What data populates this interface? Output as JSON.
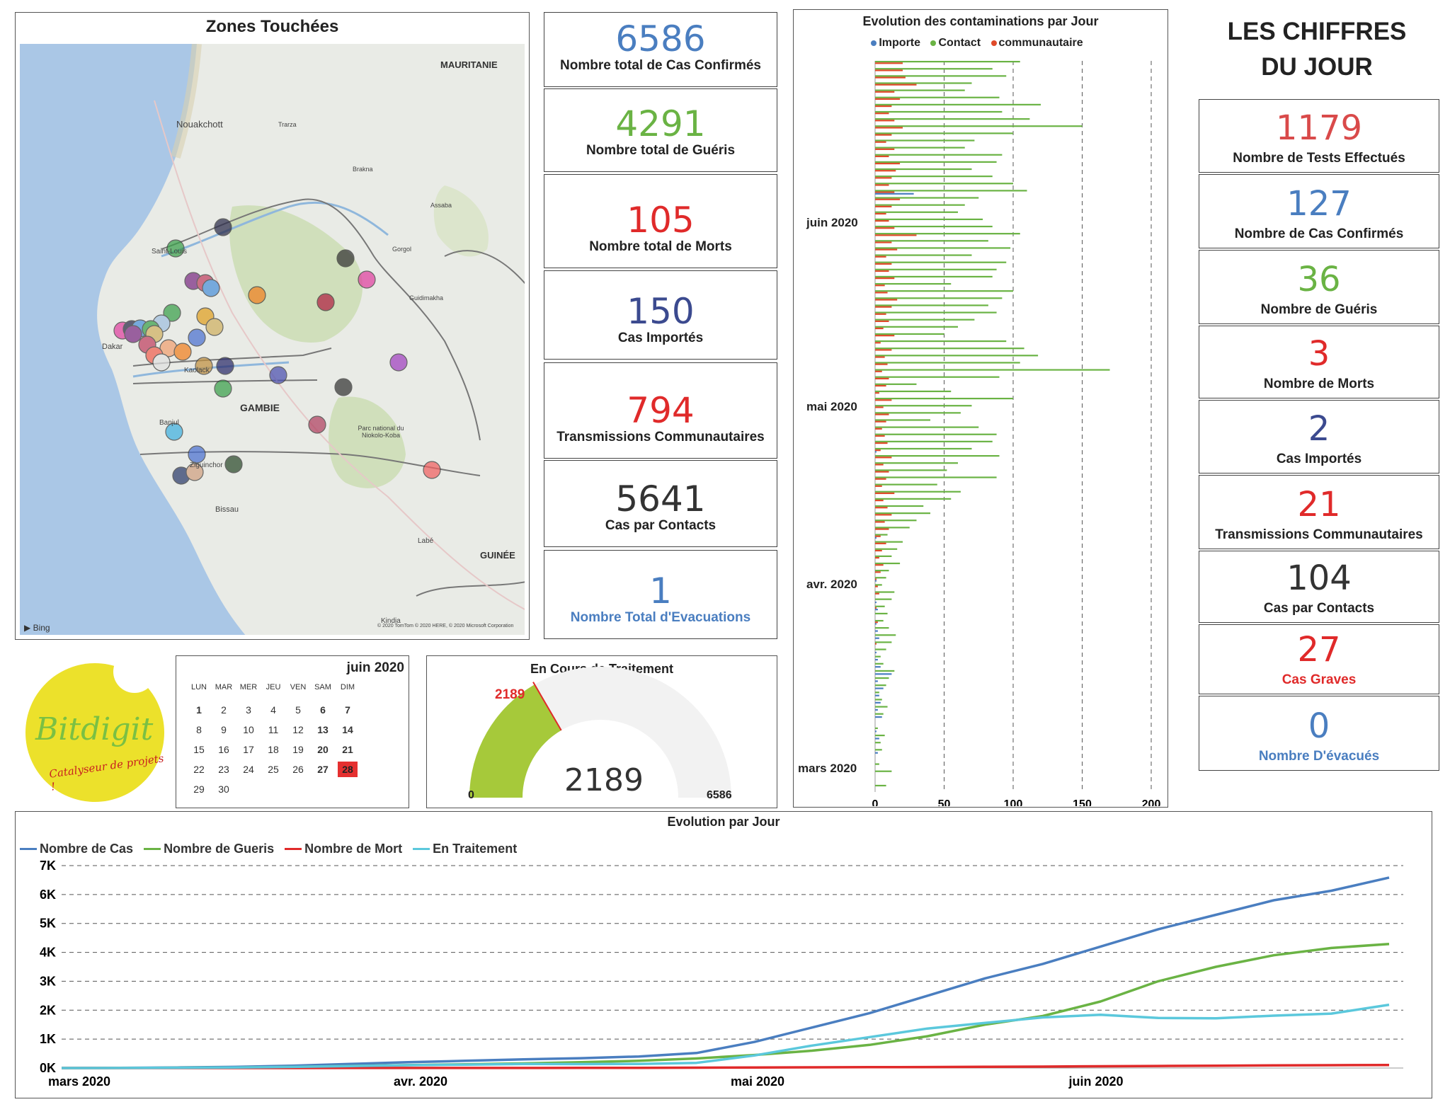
{
  "map": {
    "title": "Zones Touchées",
    "labels": [
      "MAURITANIE",
      "Nouakchott",
      "Trarza",
      "Brakna",
      "Assaba",
      "Saint-Louis",
      "Gorgol",
      "Guidimakha",
      "Dakar",
      "Kaolack",
      "GAMBIE",
      "Banjul",
      "Parc national du Niokolo-Koba",
      "Ziguinchor",
      "Bissau",
      "Labé",
      "GUINÉE",
      "Kindia"
    ],
    "bing": "Bing",
    "attribution": "© 2020 TomTom © 2020 HERE, © 2020 Microsoft Corporation"
  },
  "totals": [
    {
      "value": "6586",
      "label": "Nombre total de Cas Confirmés",
      "color": "#4a7ec0"
    },
    {
      "value": "4291",
      "label": "Nombre total de Guéris",
      "color": "#6ab344"
    },
    {
      "value": "105",
      "label": "Nombre total de Morts",
      "color": "#e02a2a"
    },
    {
      "value": "150",
      "label": "Cas Importés",
      "color": "#3b4a8f"
    },
    {
      "value": "794",
      "label": "Transmissions Communautaires",
      "color": "#e02a2a"
    },
    {
      "value": "5641",
      "label": "Cas par Contacts",
      "color": "#333333"
    },
    {
      "value": "1",
      "label": "Nombre Total d'Evacuations",
      "color": "#4a7ec0",
      "label_color": "#4a7ec0"
    }
  ],
  "daily_header": {
    "line1": "LES CHIFFRES",
    "line2": "DU JOUR"
  },
  "daily": [
    {
      "value": "1179",
      "label": "Nombre de Tests Effectués",
      "color": "#d94a4a"
    },
    {
      "value": "127",
      "label": "Nombre de Cas Confirmés",
      "color": "#4a7ec0"
    },
    {
      "value": "36",
      "label": "Nombre de Guéris",
      "color": "#6ab344"
    },
    {
      "value": "3",
      "label": "Nombre de Morts",
      "color": "#e02a2a"
    },
    {
      "value": "2",
      "label": "Cas Importés",
      "color": "#3b4a8f"
    },
    {
      "value": "21",
      "label": "Transmissions Communautaires",
      "color": "#e02a2a"
    },
    {
      "value": "104",
      "label": "Cas par Contacts",
      "color": "#333333"
    },
    {
      "value": "27",
      "label": "Cas Graves",
      "color": "#e02a2a",
      "label_color": "#e02a2a"
    },
    {
      "value": "0",
      "label": "Nombre D'évacués",
      "color": "#4a7ec0",
      "label_color": "#4a7ec0"
    }
  ],
  "calendar": {
    "month": "juin 2020",
    "dow": [
      "LUN",
      "MAR",
      "MER",
      "JEU",
      "VEN",
      "SAM",
      "DIM"
    ],
    "days": [
      "1",
      "2",
      "3",
      "4",
      "5",
      "6",
      "7",
      "8",
      "9",
      "10",
      "11",
      "12",
      "13",
      "14",
      "15",
      "16",
      "17",
      "18",
      "19",
      "20",
      "21",
      "22",
      "23",
      "24",
      "25",
      "26",
      "27",
      "28",
      "29",
      "30"
    ],
    "highlight": "28"
  },
  "logo": {
    "brand_a": "Bit",
    "brand_b": "digit",
    "tagline": "Catalyseur de projets !"
  },
  "gauge": {
    "title": "En Cours de Traitement",
    "value": 2189,
    "value_label": "2189",
    "min_label": "0",
    "max_label": "6586",
    "max": 6586
  },
  "bar_chart": {
    "title": "Evolution des contaminations par Jour",
    "legend": [
      {
        "name": "Importe",
        "color": "#4a7ec0"
      },
      {
        "name": "Contact",
        "color": "#6ab344"
      },
      {
        "name": "communautaire",
        "color": "#e04a2a"
      }
    ],
    "y_labels": [
      "juin 2020",
      "mai 2020",
      "avr. 2020",
      "mars 2020"
    ],
    "x_ticks": [
      "0",
      "50",
      "100",
      "150",
      "200"
    ]
  },
  "chart_data": {
    "type": "bar",
    "orientation": "horizontal",
    "title": "Evolution des contaminations par Jour",
    "xlim": [
      0,
      200
    ],
    "series": [
      {
        "name": "Contact",
        "color": "#6ab344",
        "values": [
          8,
          0,
          12,
          3,
          0,
          5,
          4,
          7,
          2,
          0,
          6,
          9,
          5,
          3,
          8,
          10,
          14,
          6,
          4,
          8,
          12,
          15,
          10,
          6,
          9,
          7,
          12,
          14,
          5,
          8,
          10,
          18,
          12,
          16,
          20,
          9,
          25,
          30,
          40,
          35,
          55,
          62,
          45,
          88,
          52,
          60,
          90,
          70,
          85,
          88,
          75,
          40,
          62,
          70,
          100,
          55,
          30,
          90,
          170,
          105,
          118,
          108,
          95,
          50,
          60,
          72,
          88,
          82,
          92,
          100,
          55,
          85,
          88,
          95,
          70,
          98,
          82,
          105,
          85,
          78,
          60,
          65,
          75,
          110,
          100,
          85,
          70,
          88,
          92,
          65,
          72,
          100,
          150,
          112,
          92,
          120,
          90,
          65,
          70,
          95,
          85,
          105
        ]
      },
      {
        "name": "communautaire",
        "color": "#e04a2a",
        "values": [
          0,
          0,
          0,
          0,
          0,
          0,
          0,
          0,
          0,
          0,
          0,
          0,
          0,
          0,
          0,
          0,
          0,
          0,
          0,
          0,
          1,
          0,
          0,
          2,
          0,
          1,
          0,
          3,
          2,
          1,
          4,
          6,
          3,
          5,
          8,
          4,
          10,
          7,
          12,
          9,
          6,
          14,
          5,
          8,
          10,
          6,
          12,
          4,
          9,
          7,
          5,
          8,
          10,
          6,
          12,
          3,
          8,
          10,
          5,
          9,
          7,
          12,
          4,
          14,
          6,
          10,
          8,
          12,
          16,
          9,
          7,
          14,
          10,
          12,
          8,
          16,
          12,
          30,
          14,
          10,
          8,
          12,
          18,
          14,
          10,
          12,
          15,
          18,
          10,
          14,
          8,
          12,
          20,
          14,
          10,
          12,
          18,
          14,
          30,
          22,
          20,
          20
        ]
      },
      {
        "name": "Importe",
        "color": "#4a7ec0",
        "values": [
          0,
          0,
          0,
          0,
          0,
          2,
          0,
          3,
          1,
          0,
          5,
          2,
          4,
          3,
          6,
          2,
          12,
          4,
          2,
          1,
          0,
          3,
          2,
          1,
          0,
          2,
          1,
          0,
          0,
          1,
          0,
          0,
          0,
          0,
          0,
          1,
          0,
          0,
          0,
          0,
          0,
          0,
          0,
          0,
          0,
          0,
          0,
          1,
          0,
          0,
          0,
          0,
          0,
          0,
          0,
          0,
          0,
          0,
          0,
          0,
          0,
          0,
          0,
          0,
          0,
          0,
          0,
          0,
          0,
          0,
          0,
          0,
          0,
          0,
          0,
          0,
          0,
          0,
          0,
          0,
          0,
          0,
          0,
          28,
          0,
          0,
          0,
          0,
          0,
          0,
          0,
          0,
          0,
          0,
          0,
          0,
          0,
          0,
          0,
          0,
          0,
          0
        ]
      }
    ]
  },
  "line_chart": {
    "title": "Evolution par Jour",
    "legend": [
      {
        "name": "Nombre de Cas",
        "color": "#4a7ec0"
      },
      {
        "name": "Nombre de Gueris",
        "color": "#6ab344"
      },
      {
        "name": "Nombre de Mort",
        "color": "#e02a2a"
      },
      {
        "name": "En Traitement",
        "color": "#5bc8dc"
      }
    ],
    "y_ticks": [
      "0K",
      "1K",
      "2K",
      "3K",
      "4K",
      "5K",
      "6K",
      "7K"
    ],
    "x_labels": [
      "mars 2020",
      "avr. 2020",
      "mai 2020",
      "juin 2020"
    ],
    "ylim": [
      0,
      7000
    ],
    "points_cases": [
      0,
      5,
      20,
      40,
      80,
      140,
      200,
      250,
      300,
      340,
      400,
      520,
      900,
      1400,
      1900,
      2500,
      3100,
      3600,
      4200,
      4800,
      5300,
      5800,
      6130,
      6586
    ],
    "points_recovered": [
      0,
      2,
      10,
      20,
      40,
      70,
      100,
      130,
      160,
      200,
      250,
      330,
      450,
      600,
      800,
      1100,
      1500,
      1800,
      2300,
      3000,
      3500,
      3900,
      4150,
      4291
    ],
    "points_deaths": [
      0,
      0,
      0,
      1,
      1,
      2,
      2,
      3,
      3,
      5,
      8,
      12,
      18,
      25,
      30,
      35,
      42,
      50,
      60,
      70,
      80,
      90,
      98,
      105
    ],
    "points_treatment": [
      0,
      3,
      10,
      19,
      39,
      68,
      98,
      117,
      137,
      135,
      142,
      178,
      432,
      775,
      1070,
      1365,
      1558,
      1750,
      1840,
      1730,
      1720,
      1810,
      1882,
      2189
    ]
  }
}
